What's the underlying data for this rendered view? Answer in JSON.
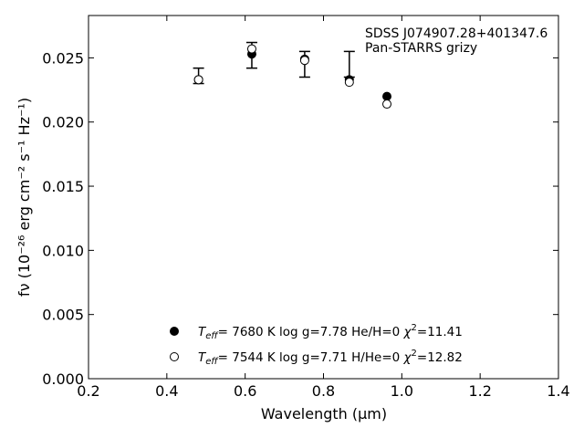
{
  "chart_data": {
    "type": "scatter",
    "xlabel": "Wavelength (μm)",
    "ylabel": "fν (10⁻²⁶ erg cm⁻² s⁻¹ Hz⁻¹)",
    "xlim": [
      0.2,
      1.4
    ],
    "ylim": [
      0.0,
      0.0283
    ],
    "xticks": [
      "0.2",
      "0.4",
      "0.6",
      "0.8",
      "1.0",
      "1.2",
      "1.4"
    ],
    "yticks": [
      "0.000",
      "0.005",
      "0.010",
      "0.015",
      "0.020",
      "0.025"
    ],
    "annotation": [
      "SDSS J074907.28+401347.6",
      "Pan-STARRS grizy"
    ],
    "observed": {
      "x": [
        0.481,
        0.617,
        0.752,
        0.866,
        0.962
      ],
      "y": [
        0.0236,
        0.0252,
        0.0245,
        0.0245,
        0.022
      ],
      "err_low": [
        0.0006,
        0.001,
        0.001,
        0.001,
        0.0
      ],
      "err_high": [
        0.0006,
        0.001,
        0.001,
        0.001,
        0.0
      ]
    },
    "series": [
      {
        "marker": "filled",
        "x": [
          0.481,
          0.617,
          0.752,
          0.866,
          0.962
        ],
        "y": [
          0.0233,
          0.0253,
          0.0249,
          0.0233,
          0.022
        ],
        "legend": {
          "teff": "7680 K",
          "logg": "log g=7.78",
          "comp": "He/H=0",
          "chi2": "=11.41"
        }
      },
      {
        "marker": "open",
        "x": [
          0.481,
          0.617,
          0.752,
          0.866,
          0.962
        ],
        "y": [
          0.0233,
          0.0257,
          0.0248,
          0.0231,
          0.0214
        ],
        "legend": {
          "teff": "7544 K",
          "logg": "log g=7.71",
          "comp": "H/He=0",
          "chi2": "=12.82"
        }
      }
    ]
  }
}
